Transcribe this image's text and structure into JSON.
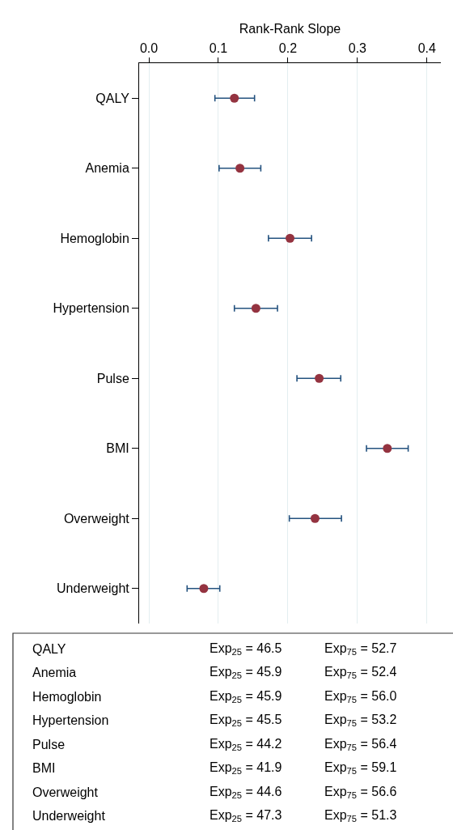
{
  "chart_data": {
    "type": "scatter",
    "orientation": "horizontal",
    "xlabel": "Rank-Rank Slope",
    "categories": [
      "QALY",
      "Anemia",
      "Hemoglobin",
      "Hypertension",
      "Pulse",
      "BMI",
      "Overweight",
      "Underweight"
    ],
    "values": [
      0.123,
      0.131,
      0.203,
      0.154,
      0.245,
      0.343,
      0.239,
      0.079
    ],
    "errors": [
      [
        0.095,
        0.152
      ],
      [
        0.101,
        0.161
      ],
      [
        0.172,
        0.234
      ],
      [
        0.123,
        0.185
      ],
      [
        0.213,
        0.276
      ],
      [
        0.313,
        0.373
      ],
      [
        0.202,
        0.277
      ],
      [
        0.055,
        0.102
      ]
    ],
    "color": "#943340",
    "marker": "circle",
    "grid": "x",
    "xlim": [
      -0.014,
      0.42
    ],
    "xticks": [
      {
        "value": 0,
        "label": "0.0"
      },
      0.1,
      0.2,
      0.3,
      0.4
    ],
    "annotations": [
      "QALY",
      "Exp$_{25}$ = 46.5",
      "Exp$_{75}$ = 52.7",
      "Anemia",
      "Exp$_{25}$ = 45.9",
      "Exp$_{75}$ = 52.4",
      "Hemoglobin",
      "Exp$_{25}$ = 45.9",
      "Exp$_{75}$ = 56.0",
      "Hypertension",
      "Exp$_{25}$ = 45.5",
      "Exp$_{75}$ = 53.2",
      "Pulse",
      "Exp$_{25}$ = 44.2",
      "Exp$_{75}$ = 56.4",
      "BMI",
      "Exp$_{25}$ = 41.9",
      "Exp$_{75}$ = 59.1",
      "Overweight",
      "Exp$_{25}$ = 44.6",
      "Exp$_{75}$ = 56.6",
      "Underweight",
      "Exp$_{25}$ = 47.3",
      "Exp$_{75}$ = 51.3"
    ]
  }
}
